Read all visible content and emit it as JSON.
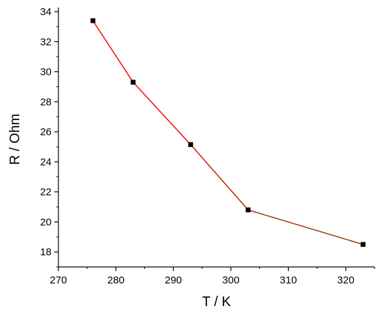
{
  "chart_data": {
    "type": "line",
    "title": "",
    "xlabel": "T / K",
    "ylabel": "R / Ohm",
    "xlim": [
      270,
      325
    ],
    "ylim": [
      17,
      34
    ],
    "x_ticks": [
      270,
      280,
      290,
      300,
      310,
      320
    ],
    "y_ticks": [
      18,
      20,
      22,
      24,
      26,
      28,
      30,
      32,
      34
    ],
    "grid": false,
    "legend": "none",
    "series": [
      {
        "x": [
          276,
          283,
          293,
          303,
          323
        ],
        "y": [
          33.4,
          29.3,
          25.15,
          20.8,
          18.5
        ],
        "segment_colors": [
          "#ff0000",
          "#ff0000",
          "#cc1a00",
          "#993300"
        ],
        "marker": "square",
        "marker_color": "#000000"
      }
    ]
  }
}
